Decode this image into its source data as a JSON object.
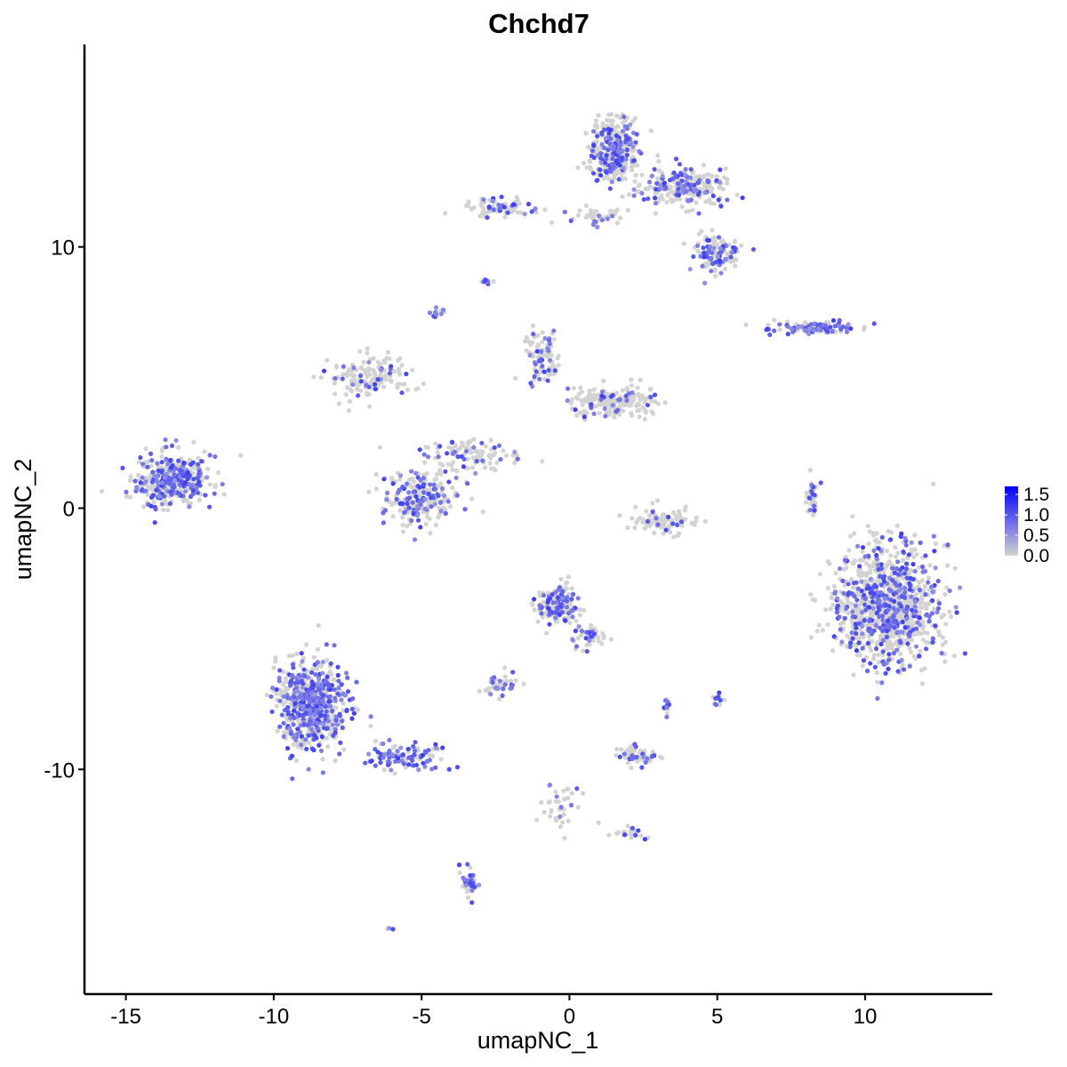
{
  "chart_data": {
    "type": "scatter",
    "title": "Chchd7",
    "xlabel": "umapNC_1",
    "ylabel": "umapNC_2",
    "xlim": [
      -16.4,
      14.3
    ],
    "ylim": [
      -18.6,
      17.75
    ],
    "xticks": [
      -15,
      -10,
      -5,
      0,
      5,
      10
    ],
    "xtick_labels": [
      "-15",
      "-10",
      "-5",
      "0",
      "5",
      "10"
    ],
    "yticks": [
      -10,
      0,
      10
    ],
    "ytick_labels": [
      "-10",
      "0",
      "10"
    ],
    "grid": false,
    "legend": {
      "type": "colorbar",
      "placement": "right",
      "min": 0.0,
      "max": 1.7,
      "ticks": [
        0.0,
        0.5,
        1.0,
        1.5
      ],
      "tick_labels": [
        "0.0",
        "0.5",
        "1.0",
        "1.5"
      ],
      "color_low": "#D3D3D3",
      "color_high": "#0000FF"
    },
    "clusters": [
      {
        "center": [
          -13.4,
          1.05
        ],
        "spread": [
          1.0,
          0.8
        ],
        "n": 400,
        "expr_frac": 0.45
      },
      {
        "center": [
          1.5,
          13.7
        ],
        "spread": [
          0.6,
          1.0
        ],
        "n": 350,
        "expr_frac": 0.35
      },
      {
        "center": [
          3.9,
          12.3
        ],
        "spread": [
          1.2,
          0.6
        ],
        "n": 250,
        "expr_frac": 0.3
      },
      {
        "center": [
          5.0,
          9.7
        ],
        "spread": [
          0.6,
          0.6
        ],
        "n": 120,
        "expr_frac": 0.35
      },
      {
        "center": [
          -2.4,
          11.5
        ],
        "spread": [
          1.0,
          0.3
        ],
        "n": 80,
        "expr_frac": 0.2
      },
      {
        "center": [
          1.0,
          11.2
        ],
        "spread": [
          0.8,
          0.3
        ],
        "n": 40,
        "expr_frac": 0.2
      },
      {
        "center": [
          8.2,
          6.9
        ],
        "spread": [
          1.4,
          0.2
        ],
        "n": 100,
        "expr_frac": 0.6
      },
      {
        "center": [
          -6.7,
          5.0
        ],
        "spread": [
          1.2,
          0.7
        ],
        "n": 150,
        "expr_frac": 0.2
      },
      {
        "center": [
          -5.1,
          0.4
        ],
        "spread": [
          1.1,
          0.9
        ],
        "n": 250,
        "expr_frac": 0.35
      },
      {
        "center": [
          -3.5,
          2.0
        ],
        "spread": [
          1.3,
          0.6
        ],
        "n": 100,
        "expr_frac": 0.2
      },
      {
        "center": [
          -0.9,
          5.8
        ],
        "spread": [
          0.5,
          0.8
        ],
        "n": 100,
        "expr_frac": 0.25
      },
      {
        "center": [
          1.5,
          4.1
        ],
        "spread": [
          1.2,
          0.5
        ],
        "n": 200,
        "expr_frac": 0.1
      },
      {
        "center": [
          3.2,
          -0.5
        ],
        "spread": [
          0.9,
          0.4
        ],
        "n": 100,
        "expr_frac": 0.1
      },
      {
        "center": [
          10.7,
          -3.7
        ],
        "spread": [
          1.4,
          1.8
        ],
        "n": 1000,
        "expr_frac": 0.3
      },
      {
        "center": [
          8.2,
          0.4
        ],
        "spread": [
          0.2,
          0.7
        ],
        "n": 40,
        "expr_frac": 0.3
      },
      {
        "center": [
          -0.4,
          -3.7
        ],
        "spread": [
          0.6,
          0.6
        ],
        "n": 200,
        "expr_frac": 0.35
      },
      {
        "center": [
          0.6,
          -5.0
        ],
        "spread": [
          0.5,
          0.5
        ],
        "n": 40,
        "expr_frac": 0.3
      },
      {
        "center": [
          -2.4,
          -6.8
        ],
        "spread": [
          0.4,
          0.3
        ],
        "n": 50,
        "expr_frac": 0.3
      },
      {
        "center": [
          -8.7,
          -7.5
        ],
        "spread": [
          1.0,
          1.4
        ],
        "n": 600,
        "expr_frac": 0.5
      },
      {
        "center": [
          -5.7,
          -9.5
        ],
        "spread": [
          1.0,
          0.4
        ],
        "n": 120,
        "expr_frac": 0.45
      },
      {
        "center": [
          2.3,
          -9.5
        ],
        "spread": [
          0.5,
          0.3
        ],
        "n": 60,
        "expr_frac": 0.4
      },
      {
        "center": [
          -3.4,
          -14.4
        ],
        "spread": [
          0.2,
          0.5
        ],
        "n": 40,
        "expr_frac": 0.5
      },
      {
        "center": [
          -0.3,
          -11.5
        ],
        "spread": [
          0.5,
          1.0
        ],
        "n": 40,
        "expr_frac": 0.2
      },
      {
        "center": [
          2.0,
          -12.4
        ],
        "spread": [
          0.4,
          0.2
        ],
        "n": 25,
        "expr_frac": 0.4
      },
      {
        "center": [
          3.3,
          -7.5
        ],
        "spread": [
          0.1,
          0.3
        ],
        "n": 15,
        "expr_frac": 0.5
      },
      {
        "center": [
          5.0,
          -7.3
        ],
        "spread": [
          0.15,
          0.3
        ],
        "n": 15,
        "expr_frac": 0.5
      },
      {
        "center": [
          -4.5,
          7.5
        ],
        "spread": [
          0.2,
          0.2
        ],
        "n": 15,
        "expr_frac": 0.5
      },
      {
        "center": [
          -2.8,
          8.7
        ],
        "spread": [
          0.15,
          0.1
        ],
        "n": 8,
        "expr_frac": 0.3
      },
      {
        "center": [
          -6.1,
          -16.1
        ],
        "spread": [
          0.1,
          0.05
        ],
        "n": 3,
        "expr_frac": 0.5
      }
    ]
  }
}
